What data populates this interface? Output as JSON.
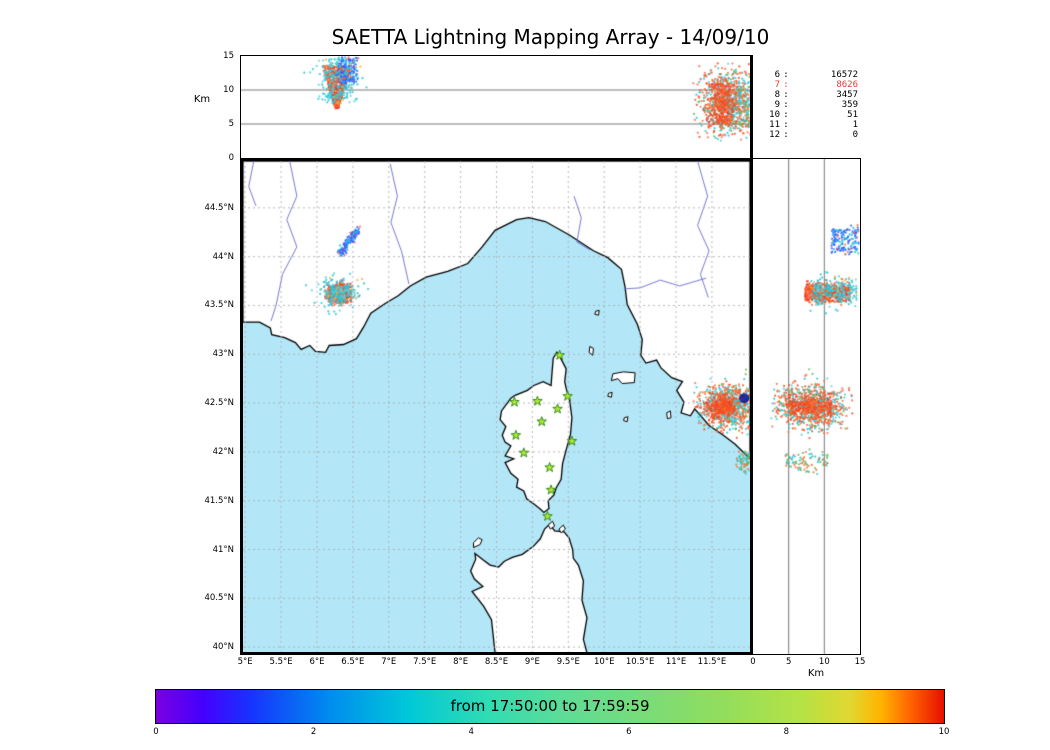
{
  "chart_data": {
    "type": "scatter",
    "title": "SAETTA Lightning Mapping Array - 14/09/10",
    "axes": {
      "alt_label": "Km",
      "alt_ticks": [
        "15",
        "10",
        "5",
        "0"
      ],
      "alt_tick_values": [
        15,
        10,
        5,
        0
      ],
      "lat_ticks": [
        "44.5°N",
        "44°N",
        "43.5°N",
        "43°N",
        "42.5°N",
        "42°N",
        "41.5°N",
        "41°N",
        "40.5°N",
        "40°N"
      ],
      "lat_tick_values": [
        44.5,
        44,
        43.5,
        43,
        42.5,
        42,
        41.5,
        41,
        40.5,
        40
      ],
      "lon_ticks": [
        "5°E",
        "5.5°E",
        "6°E",
        "6.5°E",
        "7°E",
        "7.5°E",
        "8°E",
        "8.5°E",
        "9°E",
        "9.5°E",
        "10°E",
        "10.5°E",
        "11°E",
        "11.5°E"
      ],
      "lon_tick_values": [
        5,
        5.5,
        6,
        6.5,
        7,
        7.5,
        8,
        8.5,
        9,
        9.5,
        10,
        10.5,
        11,
        11.5
      ],
      "right_alt_ticks": [
        "0",
        "5",
        "10",
        "15"
      ],
      "right_alt_tick_values": [
        0,
        5,
        10,
        15
      ],
      "right_alt_label": "Km",
      "lon_range": [
        4.97,
        12.03
      ],
      "lat_range": [
        39.95,
        44.98
      ],
      "alt_range_km": [
        0,
        15
      ]
    },
    "counts": [
      {
        "level": "6",
        "value": "16572",
        "color": "#000000"
      },
      {
        "level": "7",
        "value": "8626",
        "color": "#e53935"
      },
      {
        "level": "8",
        "value": "3457",
        "color": "#000000"
      },
      {
        "level": "9",
        "value": "359",
        "color": "#000000"
      },
      {
        "level": "10",
        "value": "51",
        "color": "#000000"
      },
      {
        "level": "11",
        "value": "1",
        "color": "#000000"
      },
      {
        "level": "12",
        "value": "0",
        "color": "#000000"
      }
    ],
    "colorbar": {
      "label": "from 17:50:00 to 17:59:59",
      "ticks": [
        "0",
        "2",
        "4",
        "6",
        "8",
        "10"
      ],
      "tick_values": [
        0,
        2,
        4,
        6,
        8,
        10
      ],
      "range": [
        0,
        10
      ],
      "stops": [
        [
          "#7a00e0",
          0
        ],
        [
          "#4400ff",
          6
        ],
        [
          "#1733ff",
          12
        ],
        [
          "#008cee",
          22
        ],
        [
          "#00c8d8",
          32
        ],
        [
          "#2fdcb4",
          42
        ],
        [
          "#5fdc96",
          52
        ],
        [
          "#79dc78",
          62
        ],
        [
          "#92dd5d",
          72
        ],
        [
          "#b6e245",
          82
        ],
        [
          "#e0d830",
          88
        ],
        [
          "#ffb300",
          92
        ],
        [
          "#ff5e00",
          96
        ],
        [
          "#e60f00",
          100
        ]
      ]
    },
    "colors": {
      "sea": "#b3e7f8",
      "land": "#ffffff",
      "coast": "#000000",
      "river": "#6a6ad0",
      "grid": "#aaaaaa",
      "panel_grid": "#555555",
      "star_fill": "#b9e62e",
      "star_edge": "#2f8f1f"
    },
    "stations": [
      [
        9.38,
        42.99
      ],
      [
        8.75,
        42.51
      ],
      [
        9.07,
        42.52
      ],
      [
        9.49,
        42.57
      ],
      [
        9.35,
        42.44
      ],
      [
        9.13,
        42.31
      ],
      [
        8.77,
        42.17
      ],
      [
        9.55,
        42.11
      ],
      [
        8.88,
        41.99
      ],
      [
        9.24,
        41.84
      ],
      [
        9.26,
        41.61
      ],
      [
        9.21,
        41.34
      ]
    ],
    "storms": [
      {
        "id": "provence-core",
        "shape": "tri",
        "n": 700,
        "lon": 6.3,
        "lat": 43.62,
        "lat_s": 0.045,
        "alt": [
          7.3,
          13.6
        ],
        "w": [
          0.02,
          0.21
        ],
        "colors": [
          [
            "#f4511e",
            0.5
          ],
          [
            "#ff7043",
            0.25
          ],
          [
            "#e53935",
            0.25
          ]
        ]
      },
      {
        "id": "provence-halo",
        "shape": "blob",
        "n": 260,
        "lon": 6.31,
        "lon_s": 0.13,
        "lat": 43.63,
        "lat_s": 0.07,
        "alt": [
          8.0,
          14.6
        ],
        "colors": [
          [
            "#26c6da",
            0.5
          ],
          [
            "#4dd0e1",
            0.25
          ],
          [
            "#80cbc4",
            0.15
          ],
          [
            "#ffa726",
            0.1
          ]
        ]
      },
      {
        "id": "provence-streak",
        "shape": "streak",
        "n": 170,
        "lon0": 6.33,
        "dlon": 0.24,
        "lat0": 44.03,
        "dlat": 0.25,
        "jit": 0.025,
        "alt": [
          11.0,
          14.8
        ],
        "colors": [
          [
            "#3d5afe",
            0.45
          ],
          [
            "#29b6f6",
            0.3
          ],
          [
            "#26c6da",
            0.15
          ],
          [
            "#ff7043",
            0.1
          ]
        ]
      },
      {
        "id": "tuscany-main",
        "shape": "blob",
        "n": 850,
        "lon": 11.72,
        "lon_s": 0.18,
        "lat": 42.46,
        "lat_s": 0.11,
        "alt": [
          2.3,
          14.2
        ],
        "altdist": "mid",
        "colors": [
          [
            "#ff7043",
            0.35
          ],
          [
            "#f4511e",
            0.18
          ],
          [
            "#26c6da",
            0.25
          ],
          [
            "#4dd0e1",
            0.12
          ],
          [
            "#66bb6a",
            0.1
          ]
        ]
      },
      {
        "id": "tuscany-core",
        "shape": "blob",
        "n": 320,
        "lon": 11.64,
        "lon_s": 0.1,
        "lat": 42.47,
        "lat_s": 0.06,
        "alt": [
          5.0,
          11.0
        ],
        "colors": [
          [
            "#f4511e",
            0.6
          ],
          [
            "#ff7043",
            0.3
          ],
          [
            "#e53935",
            0.1
          ]
        ]
      },
      {
        "id": "tuscany-south",
        "shape": "blob",
        "n": 90,
        "lon": 11.98,
        "lon_s": 0.08,
        "lat": 41.92,
        "lat_s": 0.05,
        "alt": [
          4.5,
          10.5
        ],
        "colors": [
          [
            "#66bb6a",
            0.4
          ],
          [
            "#ff7043",
            0.35
          ],
          [
            "#26c6da",
            0.25
          ]
        ]
      },
      {
        "id": "deep-blue-flash",
        "shape": "dot",
        "lon": 11.95,
        "lat": 42.55,
        "alt": 0.3,
        "r": 5,
        "color": "#0a1690",
        "panels": [
          "map"
        ]
      }
    ]
  }
}
